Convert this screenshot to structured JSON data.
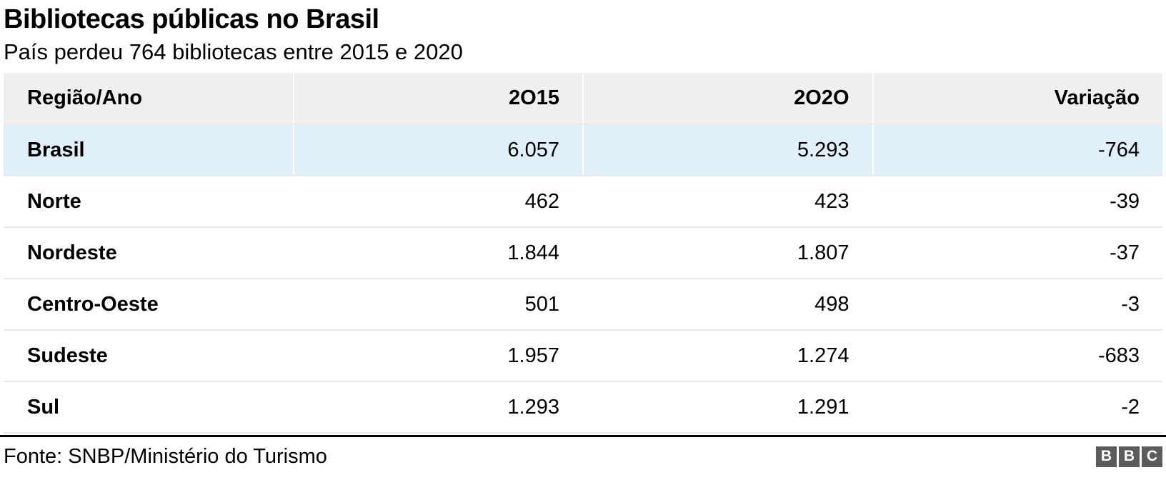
{
  "header": {
    "title": "Bibliotecas públicas no Brasil",
    "subtitle": "País perdeu 764 bibliotecas entre 2015 e 2020"
  },
  "chart_data": {
    "type": "table",
    "columns": [
      "Região/Ano",
      "2O15",
      "2O2O",
      "Variação"
    ],
    "rows": [
      {
        "region": "Brasil",
        "y2015": "6.057",
        "y2020": "5.293",
        "variation": "-764",
        "highlight": true
      },
      {
        "region": "Norte",
        "y2015": "462",
        "y2020": "423",
        "variation": "-39",
        "highlight": false
      },
      {
        "region": "Nordeste",
        "y2015": "1.844",
        "y2020": "1.807",
        "variation": "-37",
        "highlight": false
      },
      {
        "region": "Centro-Oeste",
        "y2015": "501",
        "y2020": "498",
        "variation": "-3",
        "highlight": false
      },
      {
        "region": "Sudeste",
        "y2015": "1.957",
        "y2020": "1.274",
        "variation": "-683",
        "highlight": false
      },
      {
        "region": "Sul",
        "y2015": "1.293",
        "y2020": "1.291",
        "variation": "-2",
        "highlight": false
      }
    ],
    "layout": {
      "header_background": "#f0efed",
      "highlight_row_background": "#e1eff9",
      "row_border_color": "#e9e9e9",
      "value_columns_alignment": "right"
    }
  },
  "footer": {
    "source": "Fonte: SNBP/Ministério do Turismo",
    "logo_letters": [
      "B",
      "B",
      "C"
    ],
    "logo_color": "#5c5c5c"
  }
}
